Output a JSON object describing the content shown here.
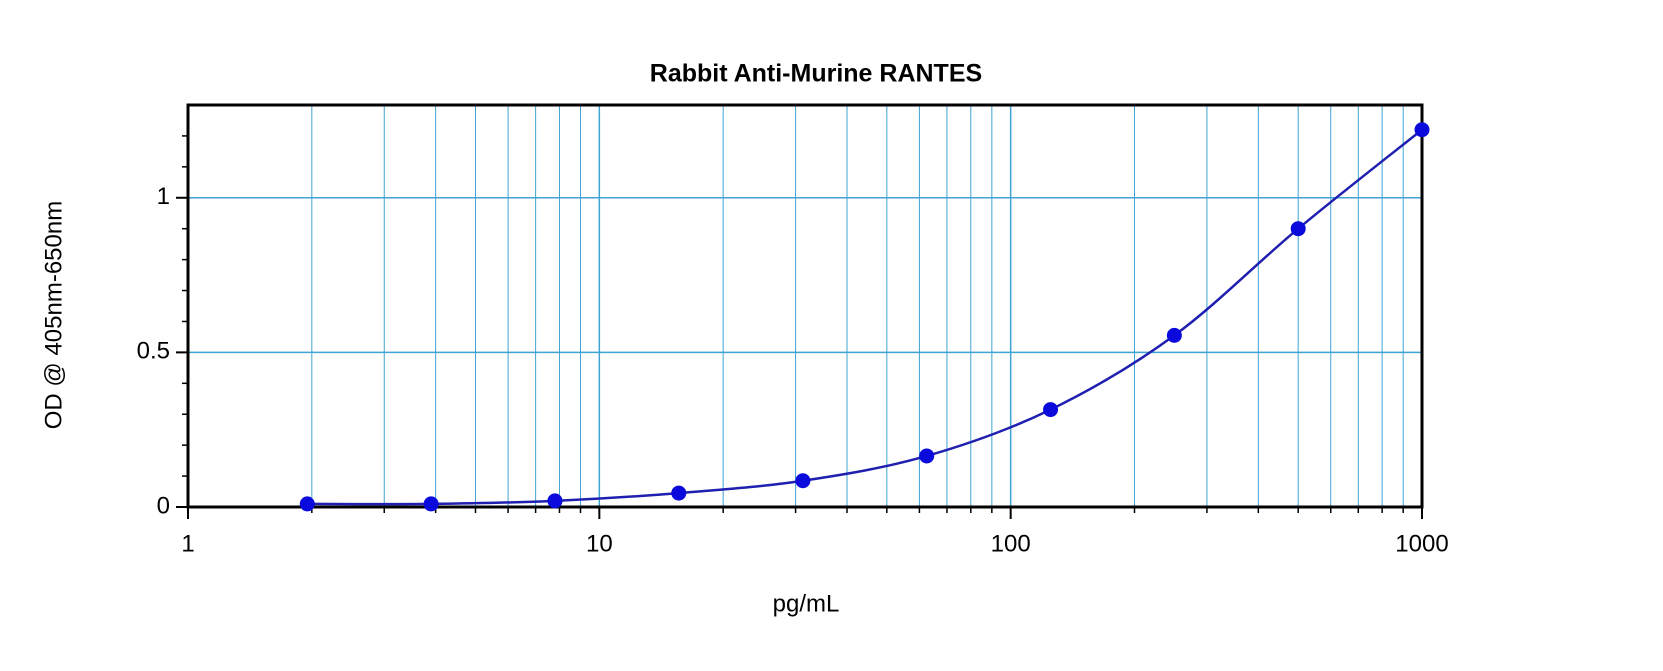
{
  "chart_data": {
    "type": "scatter",
    "title": "Rabbit Anti-Murine RANTES",
    "x_label": "pg/mL",
    "y_label": "OD @ 405nm-650nm",
    "x": [
      1.95,
      3.9,
      7.8,
      15.6,
      31.25,
      62.5,
      125,
      250,
      500,
      1000
    ],
    "series": [
      {
        "color": "#0a0adc",
        "values": [
          0.01,
          0.01,
          0.02,
          0.045,
          0.085,
          0.165,
          0.315,
          0.555,
          0.9,
          1.22
        ]
      }
    ],
    "fit_line": true,
    "fit_color": "#1f1fb0",
    "xscale": "log",
    "xlim": [
      1,
      1000
    ],
    "xticks": [
      1,
      10,
      100,
      1000
    ],
    "x_minor_ticks": [
      2,
      3,
      4,
      5,
      6,
      7,
      8,
      9,
      20,
      30,
      40,
      50,
      60,
      70,
      80,
      90,
      200,
      300,
      400,
      500,
      600,
      700,
      800,
      900
    ],
    "ylim": [
      0,
      1.3
    ],
    "yticks": [
      0,
      0.5,
      1
    ],
    "y_minor_ticks": [
      0.1,
      0.2,
      0.3,
      0.4,
      0.6,
      0.7,
      0.8,
      0.9,
      1.1,
      1.2
    ],
    "grid": true,
    "grid_color": "#3fa3d4"
  }
}
